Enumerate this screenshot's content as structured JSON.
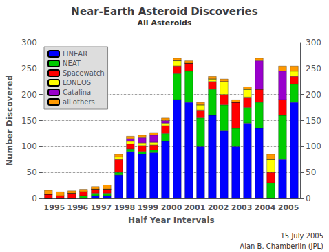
{
  "chart_data": {
    "type": "bar",
    "title": "Near-Earth Asteroid Discoveries",
    "subtitle": "All Asteroids",
    "xlabel": "Half Year Intervals",
    "ylabel": "Number Discovered",
    "annotations": [
      "15 July 2005",
      "Alan B. Chamberlin (JPL)"
    ],
    "categories": [
      "1995",
      null,
      "1996",
      null,
      "1997",
      null,
      "1998",
      null,
      "1999",
      null,
      "2000",
      null,
      "2001",
      null,
      "2002",
      null,
      "2003",
      null,
      "2004",
      null,
      "2005",
      null
    ],
    "stacked": true,
    "series": [
      {
        "name": "LINEAR",
        "color": "#0000FF",
        "values": [
          0,
          0,
          0,
          0,
          5,
          5,
          45,
          90,
          85,
          88,
          110,
          190,
          185,
          100,
          160,
          130,
          100,
          145,
          135,
          0,
          75,
          185
        ]
      },
      {
        "name": "NEAT",
        "color": "#00CC00",
        "values": [
          0,
          0,
          0,
          5,
          5,
          5,
          5,
          5,
          5,
          5,
          15,
          50,
          60,
          55,
          50,
          50,
          35,
          30,
          50,
          30,
          85,
          35
        ]
      },
      {
        "name": "Spacewatch",
        "color": "#FF0000",
        "values": [
          8,
          5,
          10,
          8,
          8,
          8,
          25,
          10,
          12,
          10,
          15,
          15,
          15,
          15,
          15,
          20,
          50,
          20,
          25,
          20,
          30,
          15
        ]
      },
      {
        "name": "LONEOS",
        "color": "#FFFF00",
        "values": [
          0,
          0,
          0,
          0,
          0,
          0,
          5,
          5,
          5,
          5,
          5,
          10,
          0,
          10,
          5,
          25,
          0,
          15,
          0,
          25,
          0,
          10
        ]
      },
      {
        "name": "Catalina",
        "color": "#9900CC",
        "values": [
          0,
          0,
          0,
          0,
          0,
          0,
          0,
          5,
          10,
          14,
          5,
          0,
          0,
          0,
          0,
          0,
          0,
          0,
          55,
          0,
          55,
          0
        ]
      },
      {
        "name": "all others",
        "color": "#FF9900",
        "values": [
          8,
          8,
          5,
          5,
          5,
          8,
          5,
          5,
          5,
          5,
          5,
          5,
          5,
          5,
          5,
          5,
          5,
          5,
          5,
          10,
          10,
          10
        ]
      }
    ],
    "ylim": [
      0,
      300
    ],
    "yticks": [
      0,
      50,
      100,
      150,
      200,
      250,
      300
    ],
    "y2lim": [
      0,
      300
    ],
    "y2ticks": [
      0,
      50,
      100,
      150,
      200,
      250,
      300
    ],
    "grid": true,
    "legend": "upper left"
  }
}
